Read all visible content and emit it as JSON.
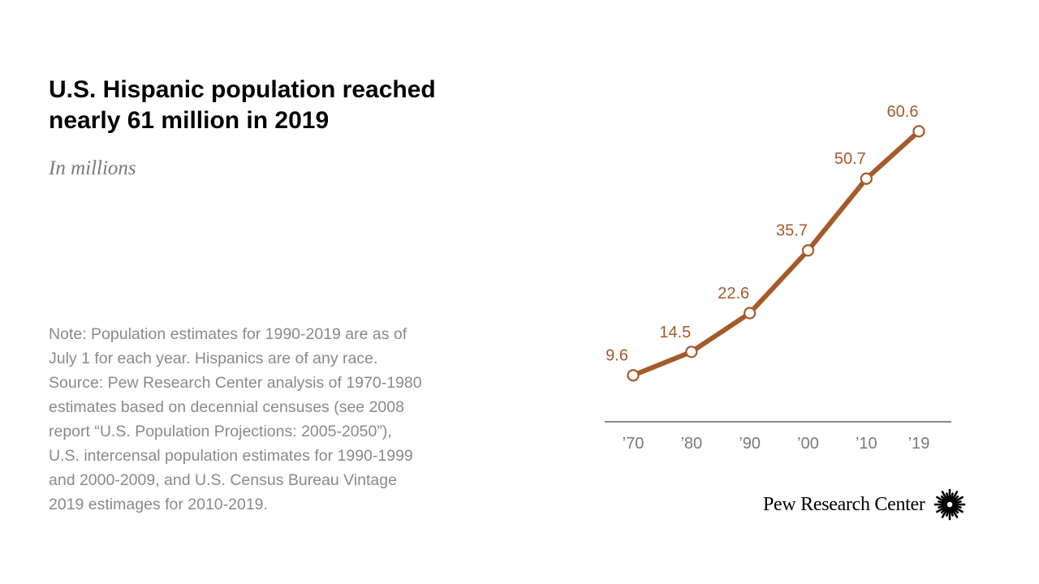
{
  "title_lines": [
    "U.S. Hispanic population reached",
    "nearly 61 million in 2019"
  ],
  "subtitle": "In millions",
  "note_lines": [
    "Note: Population estimates for 1990-2019 are as of",
    "July 1 for each year. Hispanics are of any race.",
    "Source: Pew Research Center analysis of 1970-1980",
    "estimates based on decennial censuses (see 2008",
    "report “U.S. Population Projections: 2005-2050”),",
    "U.S. intercensal population estimates for 1990-1999",
    "and 2000-2009, and U.S. Census Bureau Vintage",
    "2019 estimages for 2010-2019."
  ],
  "brand": {
    "name": "Pew Research Center",
    "logo_icon": "pew-sunburst-icon"
  },
  "chart_data": {
    "type": "line",
    "x": [
      1970,
      1980,
      1990,
      2000,
      2010,
      2019
    ],
    "tick_labels": [
      "’70",
      "’80",
      "’90",
      "’00",
      "’10",
      "’19"
    ],
    "data_labels": [
      "9.6",
      "14.5",
      "22.6",
      "35.7",
      "50.7",
      "60.6"
    ],
    "series": [
      {
        "values": [
          9.6,
          14.5,
          22.6,
          35.7,
          50.7,
          60.6
        ],
        "color": "#a55a2a"
      }
    ],
    "label_color": "#a55a2a",
    "axis_color": "#444444",
    "tick_color": "#7a7a7a",
    "ylim": [
      0,
      70
    ],
    "grid": false,
    "markers": "hollow-circle"
  }
}
